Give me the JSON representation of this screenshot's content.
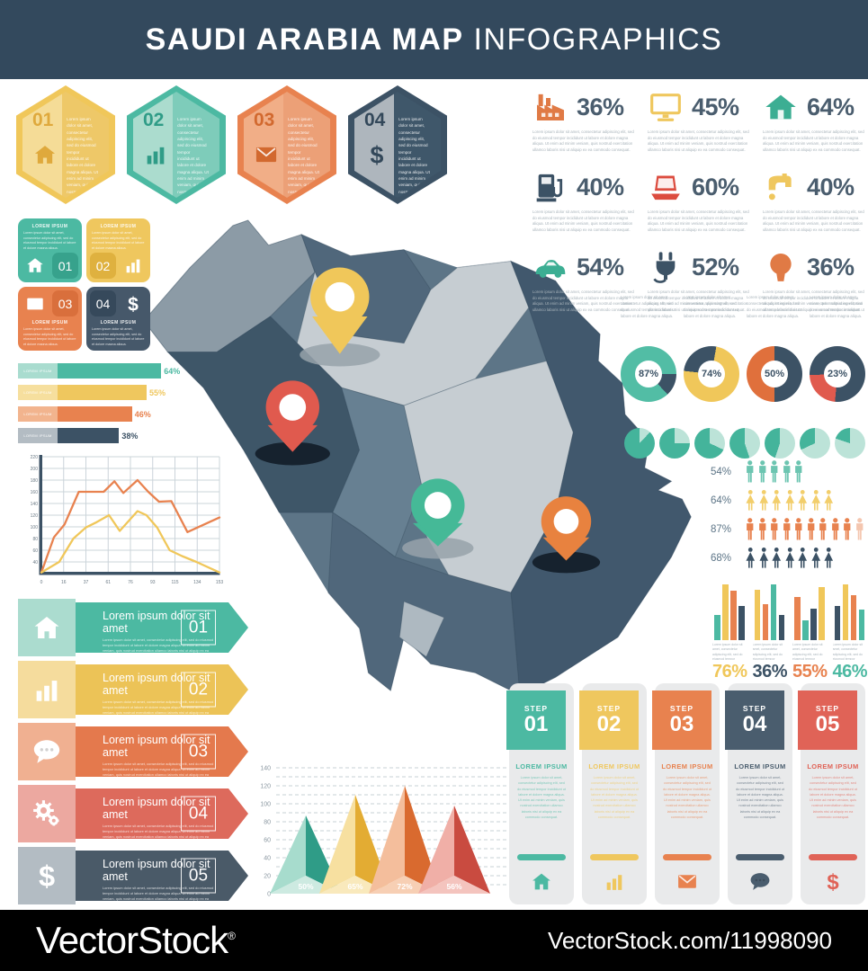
{
  "palette": {
    "header_bg": "#33495D",
    "footer_bg": "#000000",
    "teal": "#4CB9A2",
    "teal_dark": "#2F9C87",
    "teal_light": "#A9DCCF",
    "yellow": "#EFC75E",
    "yellow_dark": "#DFA93C",
    "yellow_light": "#F6DF9E",
    "orange": "#E8824F",
    "orange_dark": "#D2692F",
    "orange_light": "#F2B48E",
    "red": "#DD6A5C",
    "red_dark": "#C94B40",
    "red_light": "#ECA8A0",
    "slate": "#3C5265",
    "slate_mid": "#5D7587",
    "slate_light": "#B3BCC3",
    "map_light": "#C6CDD2",
    "map_mid": "#8C9BA6",
    "map_slate": "#50677B",
    "map_dark": "#3E5668",
    "map_east": "#41586D",
    "pct_color": "#4A5D6E",
    "tiny_text": "#A9B4BB"
  },
  "header": {
    "title_strong": "SAUDI ARABIA MAP",
    "title_light": "INFOGRAPHICS"
  },
  "lorem": {
    "label": "LOREM IPSUM",
    "title": "Lorem ipsum dolor sit amet",
    "mini": "Lorem ipsum dolor sit amet, consectetur adipiscing elit, sed do eiusmod tempor incididunt ut labore et dolore magna aliqua. Ut enim ad minim veniam, quis nostrud exercitation ullamco laboris nisi ut aliquip ex ea commodo consequat.",
    "short": "Lorem ipsum dolor sit amet, consectetur adipiscing elit, sed do eiusmod tempor incididunt ut labore et dolore magna aliqua."
  },
  "hexagons": [
    {
      "num": "01",
      "icon": "home",
      "border": "#F0C75A",
      "left_fill": "#F5DC97",
      "right_fill": "#EEC868",
      "accent": "#DFA93C"
    },
    {
      "num": "02",
      "icon": "bar-chart",
      "border": "#4CB9A2",
      "left_fill": "#ABDCCE",
      "right_fill": "#7ECCBA",
      "accent": "#2F9C87"
    },
    {
      "num": "03",
      "icon": "envelope",
      "border": "#E8824F",
      "left_fill": "#F1AE87",
      "right_fill": "#ECA077",
      "accent": "#D2692F"
    },
    {
      "num": "04",
      "icon": "dollar",
      "border": "#3C5265",
      "left_fill": "#AEB6BD",
      "right_fill": "#3F576A",
      "accent": "#33485A"
    }
  ],
  "squares": [
    {
      "num": "01",
      "icon": "home",
      "fill": "#4CB9A2",
      "badge_fill": "#37A28C",
      "layout": "v1"
    },
    {
      "num": "02",
      "icon": "bar-chart",
      "fill": "#EFC75E",
      "badge_fill": "#DFB13F",
      "layout": "v2"
    },
    {
      "num": "03",
      "icon": "envelope",
      "fill": "#E8824F",
      "badge_fill": "#D96F3C",
      "layout": "v3"
    },
    {
      "num": "04",
      "icon": "dollar",
      "fill": "#46586A",
      "badge_fill": "#36495B",
      "layout": "v4"
    }
  ],
  "stats": [
    {
      "pct": "36%",
      "icon": "factory",
      "color": "#E07A45"
    },
    {
      "pct": "45%",
      "icon": "monitor",
      "color": "#EFC75E"
    },
    {
      "pct": "64%",
      "icon": "house",
      "color": "#3CAE93"
    },
    {
      "pct": "40%",
      "icon": "gas-pump",
      "color": "#3C5265"
    },
    {
      "pct": "60%",
      "icon": "laptop",
      "color": "#DC4C3F"
    },
    {
      "pct": "40%",
      "icon": "faucet",
      "color": "#EFC75E"
    },
    {
      "pct": "54%",
      "icon": "car",
      "color": "#3CAE93"
    },
    {
      "pct": "52%",
      "icon": "plug",
      "color": "#3C5265"
    },
    {
      "pct": "36%",
      "icon": "bulb",
      "color": "#E07A45"
    }
  ],
  "banners": [
    {
      "num": "01",
      "icon": "home",
      "strip": "#4CB9A2",
      "tile": "#ABDCCF"
    },
    {
      "num": "02",
      "icon": "bar-chart",
      "strip": "#ECC357",
      "tile": "#F5DC9D"
    },
    {
      "num": "03",
      "icon": "chat",
      "strip": "#E4794D",
      "tile": "#F0B091"
    },
    {
      "num": "04",
      "icon": "gears",
      "strip": "#DD6A5C",
      "tile": "#ECA8A0"
    },
    {
      "num": "05",
      "icon": "dollar",
      "strip": "#4A5A68",
      "tile": "#B3BCC3"
    }
  ],
  "steps": [
    {
      "step_label": "STEP",
      "num": "01",
      "icon": "home",
      "color": "#4CB9A2"
    },
    {
      "step_label": "STEP",
      "num": "02",
      "icon": "bar-chart",
      "color": "#EFC75E"
    },
    {
      "step_label": "STEP",
      "num": "03",
      "icon": "envelope",
      "color": "#E8824F"
    },
    {
      "step_label": "STEP",
      "num": "04",
      "icon": "chat",
      "color": "#4A5D6E"
    },
    {
      "step_label": "STEP",
      "num": "05",
      "icon": "dollar",
      "color": "#E06357"
    }
  ],
  "map": {
    "pins": [
      {
        "id": "yellow",
        "color": "#F0C75A"
      },
      {
        "id": "red",
        "color": "#E05A4E"
      },
      {
        "id": "teal",
        "color": "#45B997"
      },
      {
        "id": "orange",
        "color": "#E8823F"
      }
    ]
  },
  "footer": {
    "logo": "VectorStock",
    "reg": "®",
    "url": "VectorStock.com/11998090"
  },
  "chart_data": [
    {
      "id": "hbar",
      "type": "bar",
      "orientation": "horizontal",
      "categories": [
        "LOREM IPSUM",
        "LOREM IPSUM",
        "LOREM IPSUM",
        "LOREM IPSUM"
      ],
      "values": [
        64,
        55,
        46,
        38
      ],
      "labels": [
        "64%",
        "55%",
        "46%",
        "38%"
      ],
      "colors": [
        "#4CB9A2",
        "#EFC75E",
        "#E8824F",
        "#3C5265"
      ],
      "chip_colors": [
        "#A9DCCF",
        "#F6DF9E",
        "#F2B48E",
        "#B3BCC3"
      ]
    },
    {
      "id": "line",
      "type": "line",
      "ylim": [
        20,
        220
      ],
      "grid": true,
      "yticks": [
        220,
        200,
        180,
        160,
        140,
        120,
        100,
        80,
        60,
        40
      ],
      "xticks": [
        "0",
        "16",
        "37",
        "61",
        "76",
        "93",
        "115",
        "134",
        "153"
      ],
      "series": [
        {
          "name": "series-orange",
          "color": "#E8824F",
          "x": [
            0,
            0.07,
            0.13,
            0.21,
            0.29,
            0.35,
            0.41,
            0.46,
            0.54,
            0.6,
            0.66,
            0.73,
            0.82,
            1
          ],
          "values": [
            22,
            82,
            104,
            160,
            160,
            160,
            178,
            158,
            180,
            160,
            143,
            144,
            91,
            116
          ]
        },
        {
          "name": "series-yellow",
          "color": "#F0C75A",
          "x": [
            0,
            0.1,
            0.18,
            0.25,
            0.31,
            0.38,
            0.44,
            0.49,
            0.54,
            0.59,
            0.65,
            0.72,
            0.79,
            0.87,
            1
          ],
          "values": [
            22,
            40,
            80,
            99,
            108,
            120,
            93,
            110,
            127,
            120,
            99,
            60,
            50,
            40,
            22
          ]
        }
      ]
    },
    {
      "id": "donuts",
      "type": "pie",
      "items": [
        {
          "label": "87%",
          "value": 87,
          "color": "#52BDA5",
          "rest_color": "#3C5265",
          "start_deg": 137
        },
        {
          "label": "74%",
          "value": 74,
          "color": "#F0C75A",
          "rest_color": "#3C5265",
          "start_deg": 10
        },
        {
          "label": "50%",
          "value": 50,
          "color": "#E0703C",
          "rest_color": "#3C5265",
          "start_deg": 180
        },
        {
          "label": "23%",
          "value": 23,
          "color": "#E05A4E",
          "rest_color": "#3C5265",
          "start_deg": 185
        }
      ]
    },
    {
      "id": "mini_pies",
      "type": "pie",
      "color": "#44B49B",
      "light_color": "#BCE3D8",
      "light_fractions": [
        12,
        25,
        32,
        45,
        55,
        68,
        80
      ]
    },
    {
      "id": "people",
      "type": "pictogram",
      "rows": [
        {
          "label": "54%",
          "count": 5,
          "gender": "male",
          "color": "#6CC5B1",
          "faded": 0
        },
        {
          "label": "64%",
          "count": 7,
          "gender": "female",
          "color": "#F2CE6B",
          "faded": 0
        },
        {
          "label": "87%",
          "count": 11,
          "gender": "male",
          "color": "#E8824F",
          "faded": 2
        },
        {
          "label": "68%",
          "count": 7,
          "gender": "female",
          "color": "#3C5265",
          "faded": 0
        }
      ]
    },
    {
      "id": "bar_groups",
      "type": "bar",
      "max": 100,
      "groups": [
        {
          "label": "76%",
          "label_color": "#F0C75A",
          "bars": [
            {
              "color": "#4CB9A2",
              "value": 45
            },
            {
              "color": "#F0C75A",
              "value": 100
            },
            {
              "color": "#E8824F",
              "value": 88
            },
            {
              "color": "#3C5265",
              "value": 62
            }
          ]
        },
        {
          "label": "36%",
          "label_color": "#3C5265",
          "bars": [
            {
              "color": "#F0C75A",
              "value": 90
            },
            {
              "color": "#E8824F",
              "value": 65
            },
            {
              "color": "#4CB9A2",
              "value": 100
            },
            {
              "color": "#3C5265",
              "value": 45
            }
          ]
        },
        {
          "label": "55%",
          "label_color": "#E8824F",
          "bars": [
            {
              "color": "#E8824F",
              "value": 78
            },
            {
              "color": "#4CB9A2",
              "value": 36
            },
            {
              "color": "#3C5265",
              "value": 56
            },
            {
              "color": "#F0C75A",
              "value": 95
            }
          ]
        },
        {
          "label": "46%",
          "label_color": "#4CB9A2",
          "bars": [
            {
              "color": "#3C5265",
              "value": 62
            },
            {
              "color": "#F0C75A",
              "value": 100
            },
            {
              "color": "#E8824F",
              "value": 81
            },
            {
              "color": "#4CB9A2",
              "value": 55
            }
          ]
        }
      ]
    },
    {
      "id": "pyramid",
      "type": "area",
      "ymax": 140,
      "yticks": [
        0,
        20,
        40,
        60,
        80,
        100,
        120,
        140
      ],
      "items": [
        {
          "label": "50%",
          "value": 87,
          "light": "#A7DCCD",
          "mid": "#52BDA5",
          "dark": "#2F9C87",
          "pale": "#CDEAE1"
        },
        {
          "label": "65%",
          "value": 110,
          "light": "#F7E0A0",
          "mid": "#F0C75A",
          "dark": "#E3AC33",
          "pale": "#F9E9BC"
        },
        {
          "label": "72%",
          "value": 120,
          "light": "#F4BE9C",
          "mid": "#E8824F",
          "dark": "#D96A2F",
          "pale": "#F7CFB4"
        },
        {
          "label": "56%",
          "value": 98,
          "light": "#F0AFA7",
          "mid": "#E06357",
          "dark": "#C94B40",
          "pale": "#F4C4BE"
        }
      ]
    }
  ]
}
